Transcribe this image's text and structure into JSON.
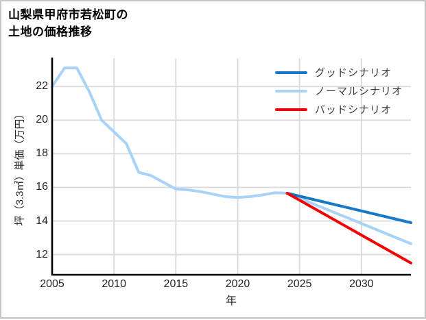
{
  "title": {
    "line1": "山梨県甲府市若松町の",
    "line2": "土地の価格推移"
  },
  "chart_data": {
    "type": "line",
    "title": "山梨県甲府市若松町の土地の価格推移",
    "xlabel": "年",
    "ylabel": "坪（3.3㎡）単価（万円）",
    "xlim": [
      2005,
      2034
    ],
    "ylim": [
      10.8,
      23.6
    ],
    "x_ticks": [
      2005,
      2010,
      2015,
      2020,
      2025,
      2030
    ],
    "y_ticks": [
      12,
      14,
      16,
      18,
      20,
      22
    ],
    "grid": true,
    "grid_color": "#d9d9d9",
    "legend_position": "upper-right-inside",
    "legend_transparent": true,
    "series": [
      {
        "name": "グッドシナリオ",
        "color": "#1878c8",
        "zorder": 2,
        "x": [
          2024,
          2034
        ],
        "values": [
          15.65,
          13.9
        ]
      },
      {
        "name": "ノーマルシナリオ",
        "color": "#a9d2f8",
        "zorder": 1,
        "x": [
          2005,
          2006,
          2007,
          2008,
          2009,
          2010,
          2011,
          2012,
          2013,
          2014,
          2015,
          2016,
          2017,
          2018,
          2019,
          2020,
          2021,
          2022,
          2023,
          2024,
          2034
        ],
        "values": [
          22.0,
          23.1,
          23.1,
          21.7,
          20.0,
          19.3,
          18.6,
          16.9,
          16.7,
          16.3,
          15.9,
          15.85,
          15.75,
          15.6,
          15.45,
          15.4,
          15.45,
          15.55,
          15.68,
          15.65,
          12.65
        ]
      },
      {
        "name": "バッドシナリオ",
        "color": "#f50000",
        "zorder": 3,
        "x": [
          2024,
          2034
        ],
        "values": [
          15.65,
          11.5
        ]
      }
    ]
  },
  "colors": {
    "axis": "#000000",
    "tick_text": "#262626",
    "legend_text": "#3d3d3d",
    "background": "#ffffff",
    "card_border": "#c4c4c4"
  }
}
